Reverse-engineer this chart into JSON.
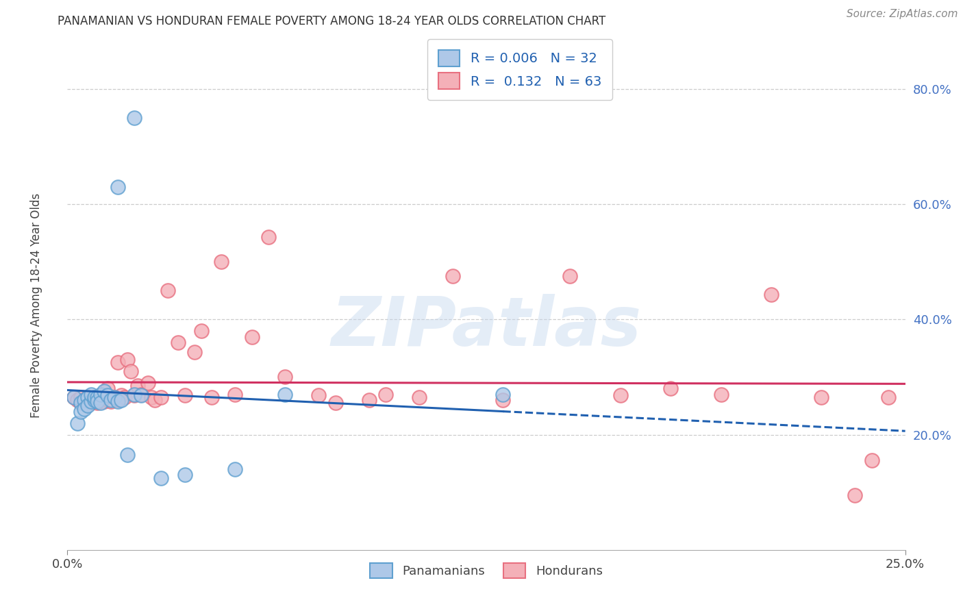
{
  "title": "PANAMANIAN VS HONDURAN FEMALE POVERTY AMONG 18-24 YEAR OLDS CORRELATION CHART",
  "source": "Source: ZipAtlas.com",
  "ylabel": "Female Poverty Among 18-24 Year Olds",
  "y_ticks": [
    0.2,
    0.4,
    0.6,
    0.8
  ],
  "y_tick_labels": [
    "20.0%",
    "40.0%",
    "60.0%",
    "80.0%"
  ],
  "x_tick_labels": [
    "0.0%",
    "25.0%"
  ],
  "xlim": [
    0.0,
    0.25
  ],
  "ylim": [
    0.0,
    0.88
  ],
  "legend_label1": "R = 0.006   N = 32",
  "legend_label2": "R =  0.132   N = 63",
  "legend_label_bottom1": "Panamanians",
  "legend_label_bottom2": "Hondurans",
  "pan_face_color": "#aec8e8",
  "pan_edge_color": "#5fa0d0",
  "hon_face_color": "#f4b0b8",
  "hon_edge_color": "#e87080",
  "trend_pan_color": "#2060b0",
  "trend_hon_color": "#d03060",
  "background_color": "#ffffff",
  "watermark_text": "ZIPatlas",
  "pan_x": [
    0.002,
    0.003,
    0.004,
    0.004,
    0.005,
    0.005,
    0.006,
    0.006,
    0.007,
    0.007,
    0.008,
    0.008,
    0.009,
    0.009,
    0.01,
    0.01,
    0.011,
    0.012,
    0.013,
    0.014,
    0.015,
    0.016,
    0.018,
    0.02,
    0.022,
    0.028,
    0.035,
    0.05,
    0.065,
    0.13,
    0.015,
    0.02
  ],
  "pan_y": [
    0.265,
    0.22,
    0.255,
    0.24,
    0.26,
    0.245,
    0.265,
    0.25,
    0.258,
    0.27,
    0.26,
    0.265,
    0.265,
    0.258,
    0.27,
    0.255,
    0.275,
    0.268,
    0.26,
    0.265,
    0.258,
    0.26,
    0.165,
    0.27,
    0.268,
    0.125,
    0.13,
    0.14,
    0.27,
    0.27,
    0.63,
    0.75
  ],
  "hon_x": [
    0.002,
    0.003,
    0.004,
    0.004,
    0.005,
    0.005,
    0.006,
    0.006,
    0.007,
    0.007,
    0.008,
    0.008,
    0.009,
    0.009,
    0.01,
    0.01,
    0.011,
    0.011,
    0.012,
    0.012,
    0.013,
    0.013,
    0.014,
    0.015,
    0.015,
    0.016,
    0.017,
    0.018,
    0.019,
    0.02,
    0.021,
    0.022,
    0.024,
    0.025,
    0.026,
    0.028,
    0.03,
    0.033,
    0.035,
    0.038,
    0.04,
    0.043,
    0.046,
    0.05,
    0.055,
    0.06,
    0.065,
    0.075,
    0.08,
    0.09,
    0.095,
    0.105,
    0.115,
    0.13,
    0.15,
    0.165,
    0.18,
    0.195,
    0.21,
    0.225,
    0.235,
    0.24,
    0.245
  ],
  "hon_y": [
    0.265,
    0.26,
    0.255,
    0.265,
    0.26,
    0.255,
    0.265,
    0.258,
    0.26,
    0.255,
    0.265,
    0.258,
    0.255,
    0.265,
    0.26,
    0.268,
    0.265,
    0.258,
    0.28,
    0.26,
    0.265,
    0.258,
    0.265,
    0.325,
    0.26,
    0.268,
    0.265,
    0.33,
    0.31,
    0.268,
    0.285,
    0.27,
    0.29,
    0.265,
    0.26,
    0.265,
    0.45,
    0.36,
    0.268,
    0.343,
    0.38,
    0.265,
    0.5,
    0.27,
    0.37,
    0.543,
    0.3,
    0.268,
    0.255,
    0.26,
    0.27,
    0.265,
    0.475,
    0.26,
    0.475,
    0.268,
    0.28,
    0.27,
    0.443,
    0.265,
    0.095,
    0.155,
    0.265
  ]
}
